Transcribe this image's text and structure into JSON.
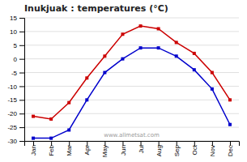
{
  "chart_data": {
    "type": "line",
    "title": "Inukjuak : temperatures (°C)",
    "categories": [
      "Jan",
      "Feb",
      "Mar",
      "Apr",
      "May",
      "Jun",
      "Jul",
      "Aug",
      "Sep",
      "Oct",
      "Nov",
      "Dec"
    ],
    "series": [
      {
        "color": "#cc0000",
        "marker": "square",
        "values": [
          -21,
          -22,
          -16,
          -7,
          1,
          9,
          12,
          11,
          6,
          2,
          -5,
          -15
        ]
      },
      {
        "color": "#0000cc",
        "marker": "square",
        "values": [
          -29,
          -29,
          -26,
          -15,
          -5,
          0,
          4,
          4,
          1,
          -4,
          -11,
          -24
        ]
      }
    ],
    "ylim": [
      -30,
      15
    ],
    "yticks": [
      -30,
      -25,
      -20,
      -15,
      -10,
      -5,
      0,
      5,
      10,
      15
    ],
    "grid": true,
    "annotations": [
      "www.allmetsat.com"
    ]
  }
}
